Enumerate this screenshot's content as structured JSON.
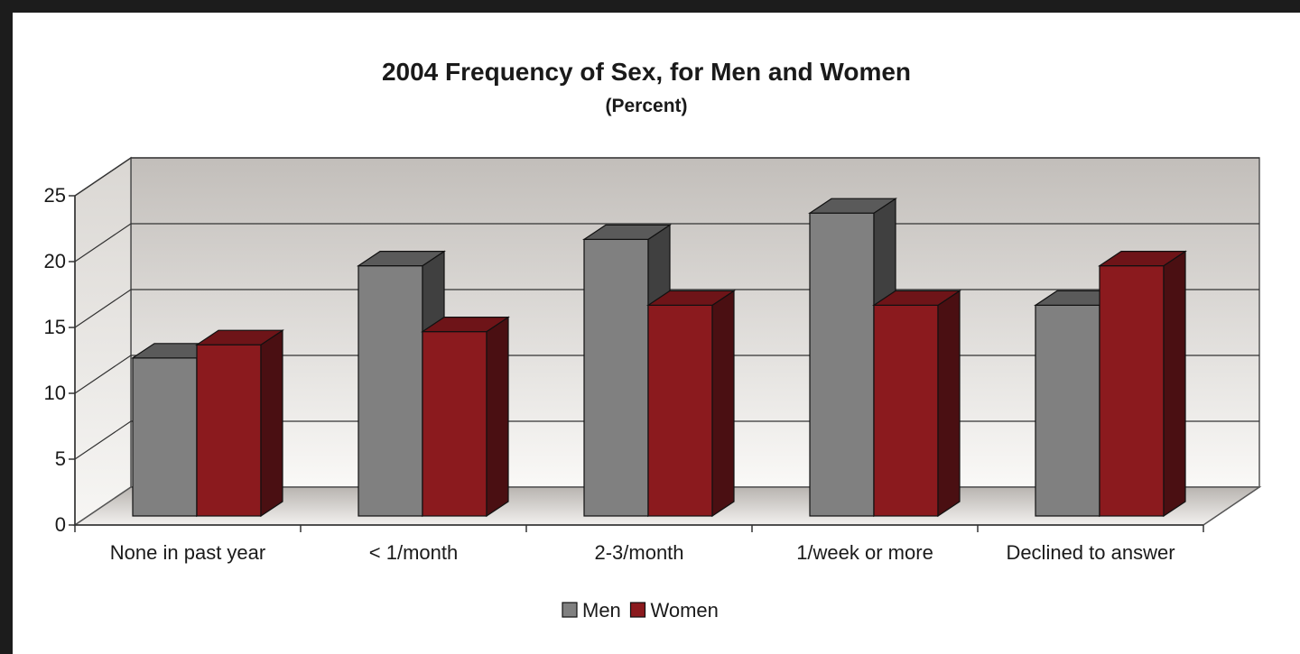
{
  "chart_data": {
    "type": "bar",
    "title": "2004 Frequency of Sex, for Men and Women",
    "subtitle": "(Percent)",
    "categories": [
      "None in past year",
      "< 1/month",
      "2-3/month",
      "1/week or more",
      "Declined to answer"
    ],
    "series": [
      {
        "name": "Men",
        "values": [
          12,
          19,
          21,
          23,
          16
        ],
        "color": "#808080",
        "side_color": "#404040",
        "top_color": "#5a5a5a"
      },
      {
        "name": "Women",
        "values": [
          13,
          14,
          16,
          16,
          19
        ],
        "color": "#8b1a1e",
        "side_color": "#4a0f12",
        "top_color": "#6e1418"
      }
    ],
    "ylim": [
      0,
      25
    ],
    "yticks": [
      "0",
      "5",
      "10",
      "15",
      "20",
      "25"
    ],
    "grid": true,
    "legend_position": "bottom",
    "style": "3d-clustered-column"
  }
}
